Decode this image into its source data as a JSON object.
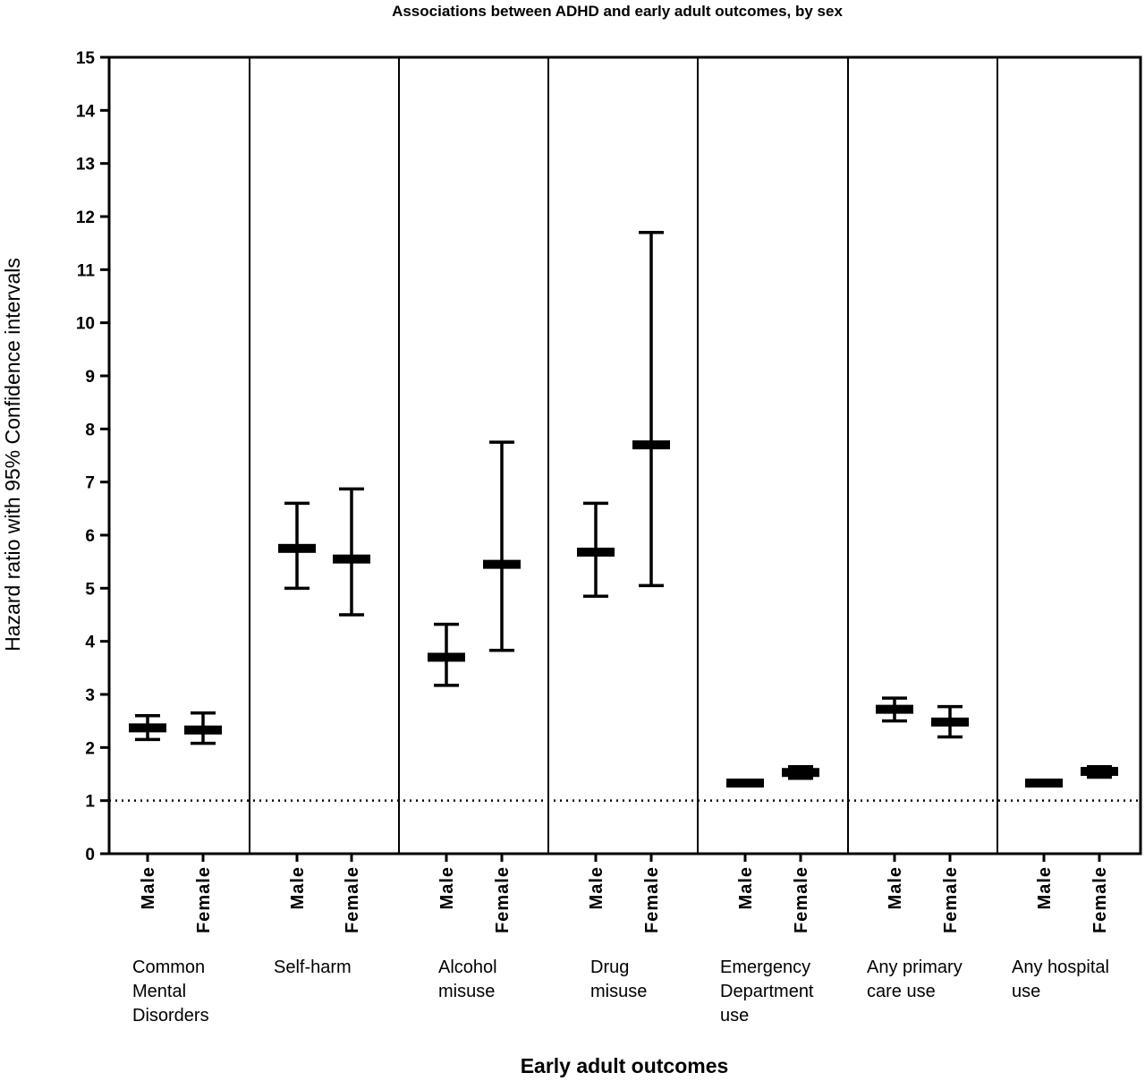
{
  "chart_data": {
    "type": "scatter",
    "title": "Associations between ADHD and early adult outcomes, by sex",
    "xlabel": "Early adult outcomes",
    "ylabel": "Hazard ratio with 95% Confidence intervals",
    "ylim": [
      0,
      15
    ],
    "yticks": [
      "0",
      "1",
      "2",
      "3",
      "4",
      "5",
      "6",
      "7",
      "8",
      "9",
      "10",
      "11",
      "12",
      "13",
      "14",
      "15"
    ],
    "reference_line": 1,
    "grid": false,
    "groups": [
      {
        "label_lines": [
          "Common",
          "Mental",
          "Disorders"
        ],
        "points": [
          {
            "sex": "Male",
            "hr": 2.37,
            "low": 2.15,
            "high": 2.6
          },
          {
            "sex": "Female",
            "hr": 2.33,
            "low": 2.08,
            "high": 2.65
          }
        ]
      },
      {
        "label_lines": [
          "Self-harm"
        ],
        "points": [
          {
            "sex": "Male",
            "hr": 5.75,
            "low": 5.0,
            "high": 6.6
          },
          {
            "sex": "Female",
            "hr": 5.55,
            "low": 4.5,
            "high": 6.87
          }
        ]
      },
      {
        "label_lines": [
          "Alcohol",
          "misuse"
        ],
        "points": [
          {
            "sex": "Male",
            "hr": 3.7,
            "low": 3.17,
            "high": 4.32
          },
          {
            "sex": "Female",
            "hr": 5.45,
            "low": 3.83,
            "high": 7.75
          }
        ]
      },
      {
        "label_lines": [
          "Drug",
          "misuse"
        ],
        "points": [
          {
            "sex": "Male",
            "hr": 5.68,
            "low": 4.85,
            "high": 6.6
          },
          {
            "sex": "Female",
            "hr": 7.7,
            "low": 5.05,
            "high": 11.7
          }
        ]
      },
      {
        "label_lines": [
          "Emergency",
          "Department",
          "use"
        ],
        "points": [
          {
            "sex": "Male",
            "hr": 1.33,
            "low": 1.28,
            "high": 1.38
          },
          {
            "sex": "Female",
            "hr": 1.53,
            "low": 1.42,
            "high": 1.64
          }
        ]
      },
      {
        "label_lines": [
          "Any primary",
          "care use"
        ],
        "points": [
          {
            "sex": "Male",
            "hr": 2.72,
            "low": 2.5,
            "high": 2.93
          },
          {
            "sex": "Female",
            "hr": 2.48,
            "low": 2.2,
            "high": 2.77
          }
        ]
      },
      {
        "label_lines": [
          "Any hospital",
          "use"
        ],
        "points": [
          {
            "sex": "Male",
            "hr": 1.33,
            "low": 1.28,
            "high": 1.38
          },
          {
            "sex": "Female",
            "hr": 1.55,
            "low": 1.44,
            "high": 1.64
          }
        ]
      }
    ]
  }
}
